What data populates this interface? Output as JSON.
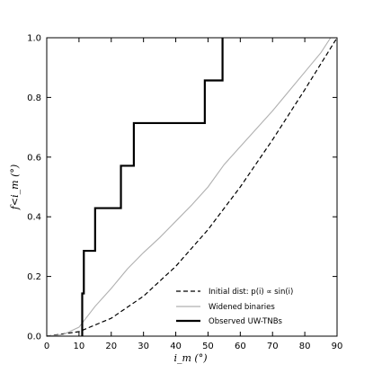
{
  "chart_data": {
    "type": "line",
    "xlabel": "i_m (°)",
    "ylabel": "f<i_m (°)",
    "xlim": [
      0,
      90
    ],
    "ylim": [
      0,
      1.0
    ],
    "x_ticks": [
      0,
      10,
      20,
      30,
      40,
      50,
      60,
      70,
      80,
      90
    ],
    "y_ticks": [
      0.0,
      0.2,
      0.4,
      0.6,
      0.8,
      1.0
    ],
    "x_tick_labels": [
      "0",
      "10",
      "20",
      "30",
      "40",
      "50",
      "60",
      "70",
      "80",
      "90"
    ],
    "y_tick_labels": [
      "0.0",
      "0.2",
      "0.4",
      "0.6",
      "0.8",
      "1.0"
    ],
    "grid": false,
    "legend_position": "bottom-right",
    "series": [
      {
        "name": "Initial dist: p(i) ∝ sin(i)",
        "style": "dashed",
        "color": "#000000",
        "x": [
          0,
          10,
          20,
          30,
          40,
          50,
          60,
          70,
          80,
          90
        ],
        "y": [
          0.0,
          0.015,
          0.06,
          0.134,
          0.234,
          0.357,
          0.5,
          0.658,
          0.826,
          1.0
        ]
      },
      {
        "name": "Widened binaries",
        "style": "solid-thin",
        "color": "#b0b0b0",
        "x": [
          0,
          5,
          10,
          15,
          20,
          25,
          30,
          35,
          40,
          45,
          50,
          55,
          60,
          65,
          70,
          75,
          80,
          85,
          88
        ],
        "y": [
          0.0,
          0.005,
          0.03,
          0.1,
          0.16,
          0.225,
          0.28,
          0.33,
          0.385,
          0.44,
          0.5,
          0.575,
          0.635,
          0.695,
          0.755,
          0.82,
          0.885,
          0.95,
          1.0
        ]
      },
      {
        "name": "Observed UW-TNBs",
        "style": "step-thick",
        "color": "#000000",
        "x": [
          11,
          11,
          11.5,
          11.5,
          15,
          15,
          23,
          23,
          27,
          27,
          49,
          49,
          54.5,
          54.5
        ],
        "y": [
          0.0,
          0.143,
          0.143,
          0.286,
          0.286,
          0.429,
          0.429,
          0.571,
          0.571,
          0.714,
          0.714,
          0.857,
          0.857,
          1.0
        ]
      }
    ]
  }
}
